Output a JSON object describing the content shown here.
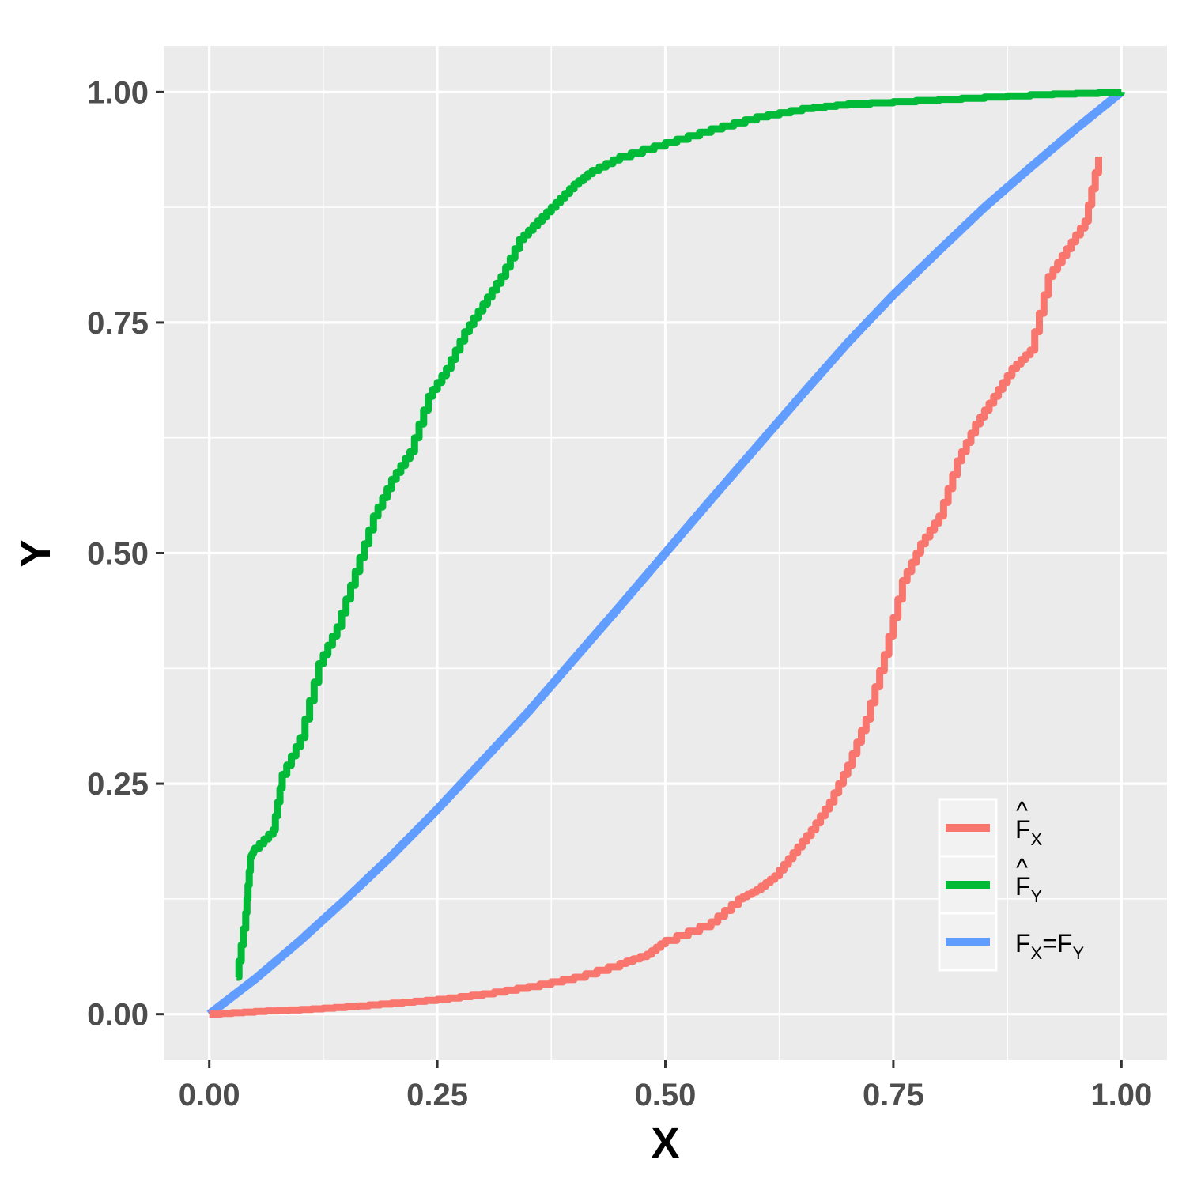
{
  "chart_data": {
    "type": "line",
    "title": "",
    "xlabel": "X",
    "ylabel": "Y",
    "xlim": [
      -0.05,
      1.05
    ],
    "ylim": [
      -0.05,
      1.05
    ],
    "x_ticks": [
      0,
      0.25,
      0.5,
      0.75,
      1
    ],
    "y_ticks": [
      0,
      0.25,
      0.5,
      0.75,
      1
    ],
    "x_tick_labels": [
      "0.00",
      "0.25",
      "0.50",
      "0.75",
      "1.00"
    ],
    "y_tick_labels": [
      "0.00",
      "0.25",
      "0.50",
      "0.75",
      "1.00"
    ],
    "grid": true,
    "background": "#ebebeb",
    "legend_position": "bottom-right",
    "series": [
      {
        "name": "F̂X",
        "legend": {
          "main": "F",
          "hat": "^",
          "sub": "X",
          "main2": "",
          "sub2": ""
        },
        "color": "#f8766d",
        "line_style": "step",
        "x": [
          0.0,
          0.05,
          0.1,
          0.15,
          0.2,
          0.25,
          0.3,
          0.35,
          0.4,
          0.45,
          0.48,
          0.5,
          0.55,
          0.58,
          0.6,
          0.62,
          0.64,
          0.66,
          0.68,
          0.7,
          0.72,
          0.74,
          0.76,
          0.78,
          0.8,
          0.82,
          0.84,
          0.86,
          0.88,
          0.9,
          0.92,
          0.94,
          0.96,
          0.975
        ],
        "y": [
          0.0,
          0.003,
          0.005,
          0.008,
          0.012,
          0.016,
          0.022,
          0.03,
          0.04,
          0.055,
          0.065,
          0.08,
          0.1,
          0.125,
          0.135,
          0.15,
          0.175,
          0.2,
          0.23,
          0.27,
          0.32,
          0.39,
          0.47,
          0.51,
          0.54,
          0.6,
          0.64,
          0.67,
          0.7,
          0.72,
          0.8,
          0.83,
          0.86,
          0.93
        ]
      },
      {
        "name": "F̂Y",
        "legend": {
          "main": "F",
          "hat": "^",
          "sub": "Y",
          "main2": "",
          "sub2": ""
        },
        "color": "#00ba38",
        "line_style": "step",
        "x": [
          0.03,
          0.04,
          0.045,
          0.05,
          0.07,
          0.08,
          0.1,
          0.12,
          0.14,
          0.16,
          0.18,
          0.2,
          0.22,
          0.24,
          0.26,
          0.28,
          0.3,
          0.32,
          0.34,
          0.36,
          0.38,
          0.4,
          0.42,
          0.45,
          0.5,
          0.55,
          0.6,
          0.65,
          0.7,
          0.8,
          0.9,
          1.0
        ],
        "y": [
          0.04,
          0.11,
          0.17,
          0.18,
          0.2,
          0.26,
          0.3,
          0.38,
          0.42,
          0.48,
          0.54,
          0.58,
          0.61,
          0.67,
          0.7,
          0.74,
          0.77,
          0.8,
          0.84,
          0.86,
          0.88,
          0.9,
          0.915,
          0.93,
          0.945,
          0.96,
          0.973,
          0.982,
          0.987,
          0.992,
          0.997,
          1.0
        ]
      },
      {
        "name": "FX=FY",
        "legend": {
          "main": "F",
          "hat": "",
          "sub": "X",
          "main2": "=F",
          "sub2": "Y"
        },
        "color": "#619cff",
        "line_style": "smooth",
        "x": [
          0.0,
          0.05,
          0.1,
          0.15,
          0.2,
          0.25,
          0.3,
          0.35,
          0.4,
          0.45,
          0.5,
          0.55,
          0.6,
          0.65,
          0.7,
          0.75,
          0.8,
          0.85,
          0.9,
          0.95,
          1.0
        ],
        "y": [
          0.0,
          0.038,
          0.08,
          0.125,
          0.172,
          0.222,
          0.275,
          0.328,
          0.385,
          0.442,
          0.5,
          0.558,
          0.615,
          0.672,
          0.728,
          0.78,
          0.828,
          0.875,
          0.918,
          0.96,
          1.0
        ]
      }
    ]
  }
}
